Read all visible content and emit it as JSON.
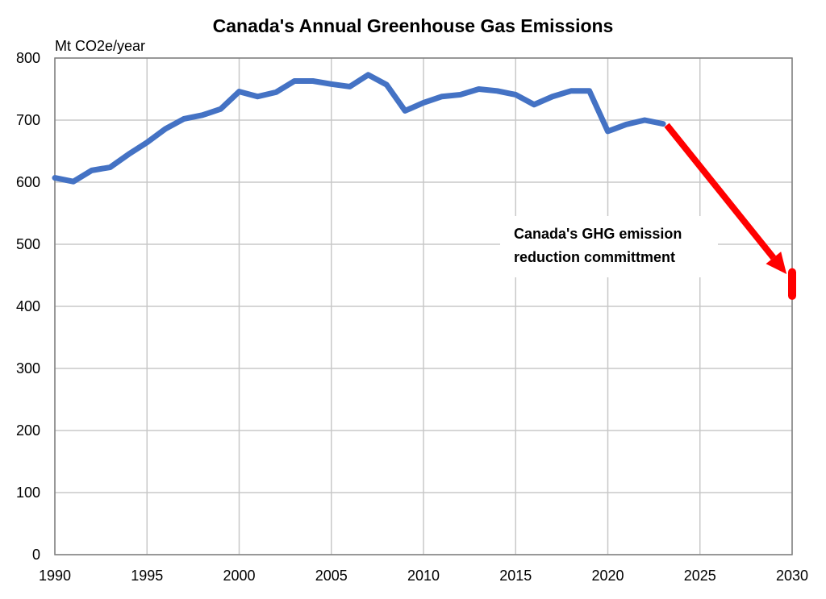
{
  "chart_data": {
    "type": "line",
    "title": "Canada's Annual Greenhouse Gas Emissions",
    "ylabel": "Mt CO2e/year",
    "xlabel": "",
    "xlim": [
      1990,
      2030
    ],
    "ylim": [
      0,
      800
    ],
    "x_ticks": [
      "1990",
      "1995",
      "2000",
      "2005",
      "2010",
      "2015",
      "2020",
      "2025",
      "2030"
    ],
    "y_ticks": [
      "0",
      "100",
      "200",
      "300",
      "400",
      "500",
      "600",
      "700",
      "800"
    ],
    "grid": true,
    "series": [
      {
        "color": "#4472C4",
        "x": [
          1990,
          1991,
          1992,
          1993,
          1994,
          1995,
          1996,
          1997,
          1998,
          1999,
          2000,
          2001,
          2002,
          2003,
          2004,
          2005,
          2006,
          2007,
          2008,
          2009,
          2010,
          2011,
          2012,
          2013,
          2014,
          2015,
          2016,
          2017,
          2018,
          2019,
          2020,
          2021,
          2022,
          2023
        ],
        "y": [
          607,
          601,
          619,
          624,
          645,
          664,
          686,
          702,
          708,
          718,
          746,
          738,
          745,
          763,
          763,
          758,
          754,
          773,
          757,
          715,
          728,
          738,
          741,
          750,
          747,
          741,
          725,
          738,
          747,
          747,
          682,
          693,
          700,
          694
        ]
      }
    ],
    "target": {
      "color": "#FF0000",
      "arrow_from": [
        2023.2,
        692
      ],
      "arrow_to": [
        2029.7,
        452
      ],
      "range_x": 2030,
      "range_y": [
        417,
        455
      ]
    },
    "annotation": [
      "Canada's GHG emission",
      "reduction committment"
    ]
  }
}
